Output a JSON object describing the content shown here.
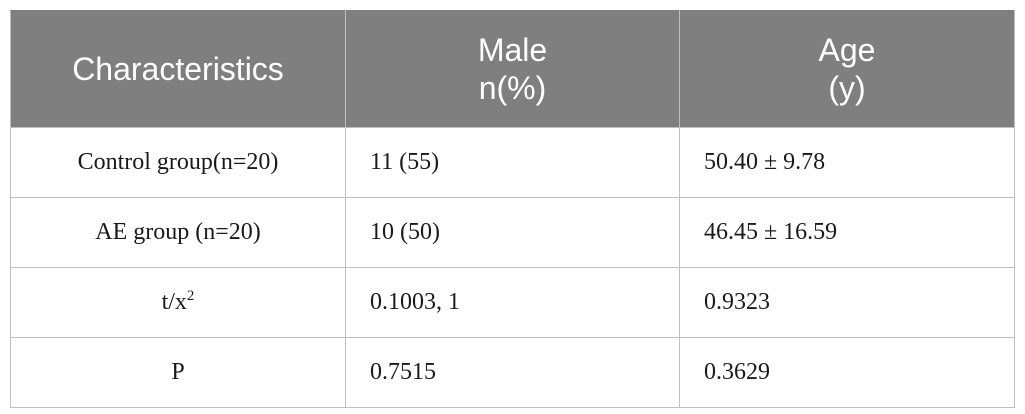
{
  "header": {
    "col1": "Characteristics",
    "col2_line1": "Male",
    "col2_line2": "n(%)",
    "col3_line1": "Age",
    "col3_line2": "(y)"
  },
  "rows": [
    {
      "label": "Control group(n=20)",
      "male": "11 (55)",
      "age": "50.40 ± 9.78"
    },
    {
      "label": "AE group (n=20)",
      "male": "10 (50)",
      "age": "46.45 ± 16.59"
    },
    {
      "label_base": "t/x",
      "label_sup": "2",
      "male": "0.1003, 1",
      "age": "0.9323"
    },
    {
      "label": "P",
      "male": "0.7515",
      "age": "0.3629"
    }
  ],
  "colors": {
    "header_bg": "#7f7f7f",
    "header_text": "#ffffff",
    "grid": "#bfbfbf"
  }
}
